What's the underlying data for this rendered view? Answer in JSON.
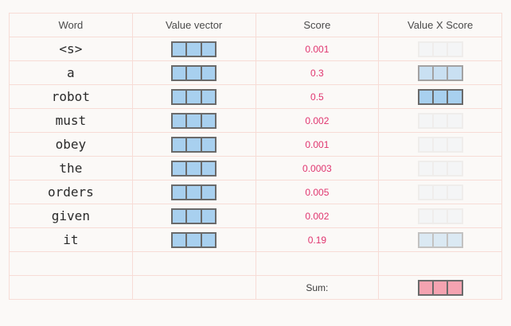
{
  "headers": {
    "word": "Word",
    "value_vector": "Value vector",
    "score": "Score",
    "value_x_score": "Value X Score"
  },
  "rows": [
    {
      "word": "<s>",
      "score": "0.001",
      "weight": 0.001
    },
    {
      "word": "a",
      "score": "0.3",
      "weight": 0.3
    },
    {
      "word": "robot",
      "score": "0.5",
      "weight": 0.5
    },
    {
      "word": "must",
      "score": "0.002",
      "weight": 0.002
    },
    {
      "word": "obey",
      "score": "0.001",
      "weight": 0.001
    },
    {
      "word": "the",
      "score": "0.0003",
      "weight": 0.0003
    },
    {
      "word": "orders",
      "score": "0.005",
      "weight": 0.005
    },
    {
      "word": "given",
      "score": "0.002",
      "weight": 0.002
    },
    {
      "word": "it",
      "score": "0.19",
      "weight": 0.19
    }
  ],
  "sum_label": "Sum:",
  "colors": {
    "value_vector_fill": "#a8d0ef",
    "sum_vector_fill": "#f4a3b1",
    "score_text": "#e0356f",
    "grid_line": "#f7dcd6"
  }
}
